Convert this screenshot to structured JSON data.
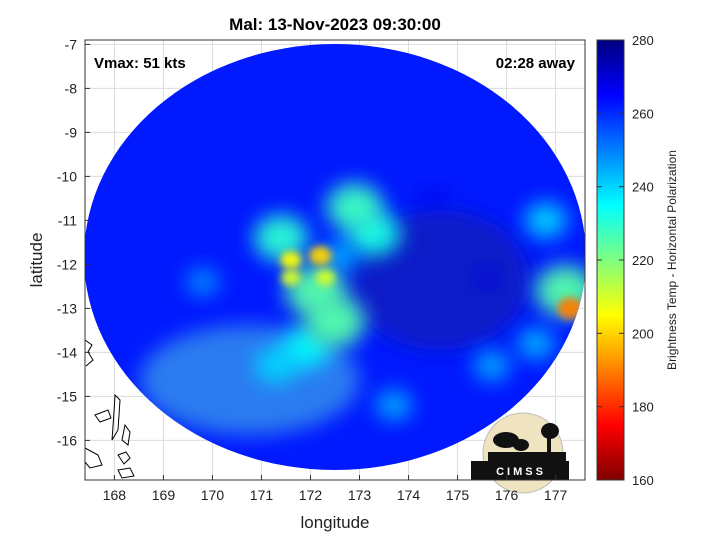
{
  "title": "Mal: 13-Nov-2023 09:30:00",
  "annotations": {
    "vmax": "Vmax: 51 kts",
    "time_away": "02:28 away"
  },
  "colormap": [
    "#00007f",
    "#0000ff",
    "#007fff",
    "#00ffff",
    "#7fff7f",
    "#ffff00",
    "#ff7f00",
    "#ff0000",
    "#7f0000"
  ],
  "colorbar": {
    "label": "Brightness Temp - Horizontal Polarization",
    "range": [
      160,
      280
    ],
    "ticks": [
      "280",
      "260",
      "240",
      "220",
      "200",
      "180",
      "160"
    ]
  },
  "logo": {
    "text": "CIMSS"
  },
  "chart_data": {
    "type": "heatmap",
    "title": "Mal: 13-Nov-2023 09:30:00",
    "xlabel": "longitude",
    "ylabel": "latitude",
    "xlim": [
      167.4,
      177.6
    ],
    "ylim": [
      -16.9,
      -6.9
    ],
    "xticks": [
      "168",
      "169",
      "170",
      "171",
      "172",
      "173",
      "174",
      "175",
      "176",
      "177"
    ],
    "yticks": [
      "-7",
      "-8",
      "-9",
      "-10",
      "-11",
      "-12",
      "-13",
      "-14",
      "-15",
      "-16"
    ],
    "grid": true,
    "background_value": 262,
    "swath_center": [
      172.5,
      -12.0
    ],
    "features": [
      {
        "lon": 172.6,
        "lat": -11.8,
        "value": 245
      },
      {
        "lon": 172.1,
        "lat": -12.6,
        "value": 225
      },
      {
        "lon": 172.5,
        "lat": -13.3,
        "value": 225
      },
      {
        "lon": 171.4,
        "lat": -11.4,
        "value": 230
      },
      {
        "lon": 172.9,
        "lat": -10.7,
        "value": 228
      },
      {
        "lon": 173.3,
        "lat": -11.3,
        "value": 232
      },
      {
        "lon": 171.9,
        "lat": -13.9,
        "value": 236
      },
      {
        "lon": 172.2,
        "lat": -11.8,
        "value": 200
      },
      {
        "lon": 171.6,
        "lat": -11.9,
        "value": 205
      },
      {
        "lon": 171.6,
        "lat": -12.3,
        "value": 210
      },
      {
        "lon": 172.3,
        "lat": -12.3,
        "value": 210
      },
      {
        "lon": 177.3,
        "lat": -13.0,
        "value": 190
      },
      {
        "lon": 177.2,
        "lat": -12.6,
        "value": 225
      },
      {
        "lon": 176.8,
        "lat": -11.0,
        "value": 240
      },
      {
        "lon": 175.7,
        "lat": -14.3,
        "value": 245
      },
      {
        "lon": 173.7,
        "lat": -15.2,
        "value": 245
      },
      {
        "lon": 169.8,
        "lat": -12.4,
        "value": 248
      },
      {
        "lon": 171.3,
        "lat": -14.3,
        "value": 240
      },
      {
        "lon": 175.6,
        "lat": -12.3,
        "value": 268
      },
      {
        "lon": 174.5,
        "lat": -10.5,
        "value": 268
      },
      {
        "lon": 176.6,
        "lat": -13.8,
        "value": 244
      }
    ]
  }
}
